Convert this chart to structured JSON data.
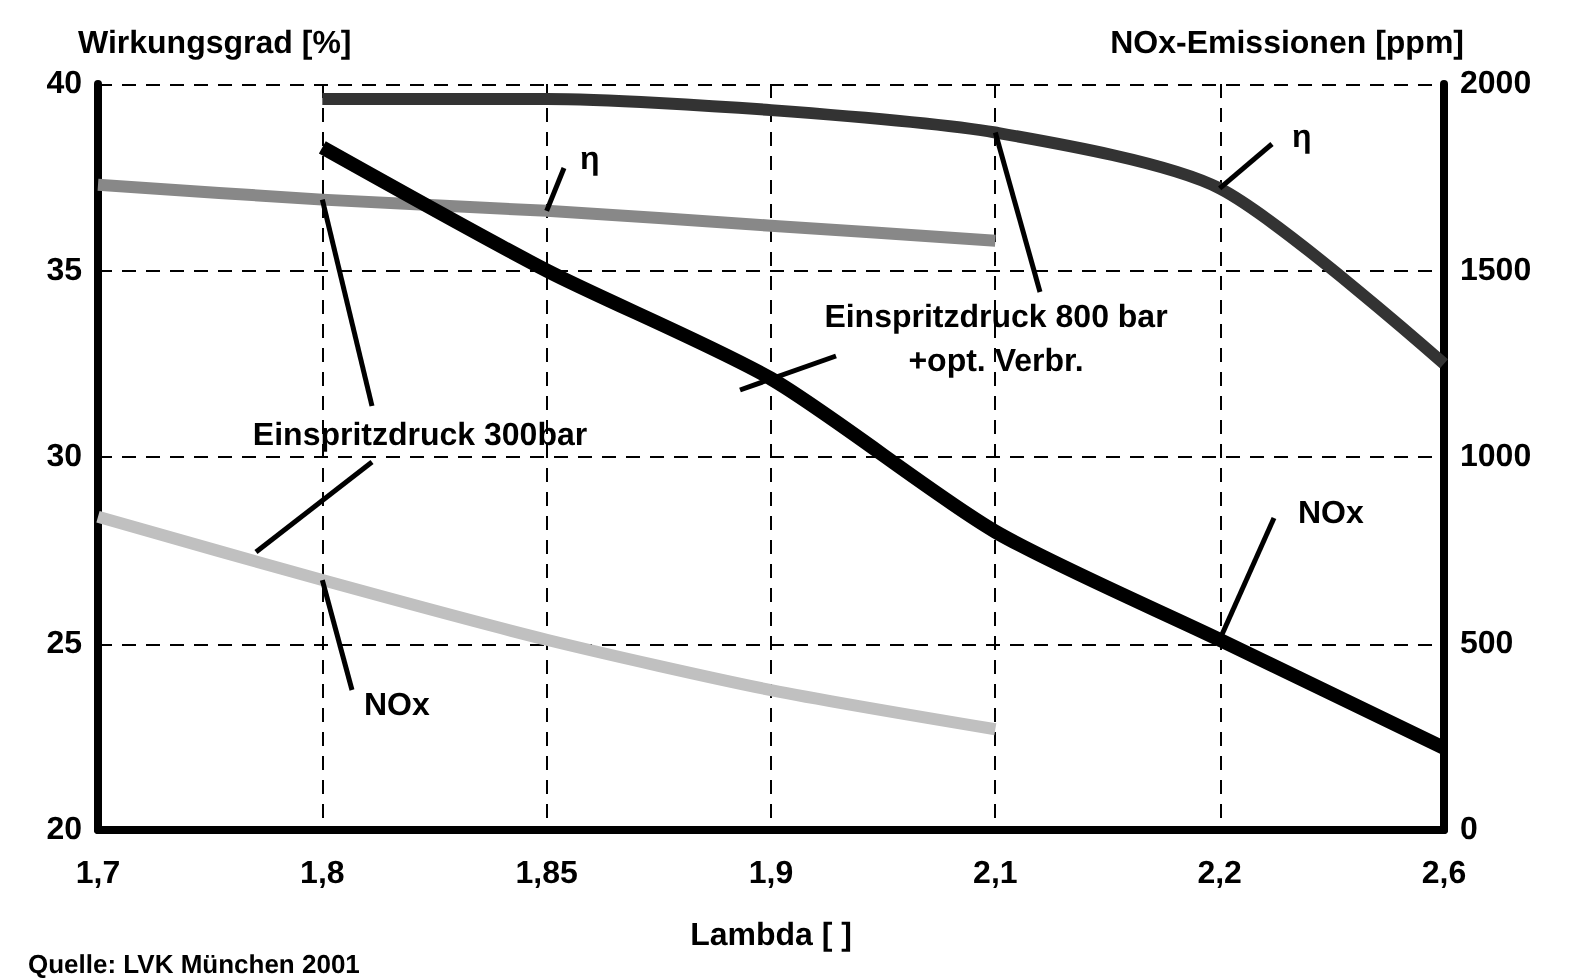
{
  "chart_data": {
    "type": "line",
    "xlabel": "Lambda [ ]",
    "ylabel": "Wirkungsgrad [%]",
    "y2label": "NOx-Emissionen [ppm]",
    "categories": [
      "1,7",
      "1,8",
      "1,85",
      "1,9",
      "2,1",
      "2,2",
      "2,6"
    ],
    "series": [
      {
        "color": "#888888",
        "values": [
          37.3,
          36.9,
          36.6,
          36.2,
          35.8,
          null,
          null
        ]
      },
      {
        "color": "#c0c0c0",
        "axis": "y2",
        "values": [
          840,
          670,
          510,
          375,
          270,
          null,
          null
        ]
      },
      {
        "color": "#333333",
        "values": [
          null,
          39.6,
          39.6,
          39.3,
          38.7,
          37.2,
          32.5
        ]
      },
      {
        "color": "#000000",
        "axis": "y2",
        "values": [
          null,
          1830,
          1500,
          1210,
          800,
          510,
          220
        ]
      }
    ],
    "ylim": [
      20,
      40
    ],
    "yticks": [
      20,
      25,
      30,
      35,
      40
    ],
    "y2lim": [
      0,
      2000
    ],
    "y2ticks": [
      0,
      500,
      1000,
      1500,
      2000
    ],
    "grid": true,
    "marker": "none",
    "line_style": "solid",
    "annotations": [
      {
        "text": "η",
        "x": "1,85",
        "y": 36.6
      },
      {
        "text": "Einspritzdruck 300bar",
        "x": "1,8",
        "y": 36.9
      },
      {
        "text": "NOx",
        "x": "1,8",
        "y": 26.7
      },
      {
        "text": "Einspritzdruck 800 bar\n+opt. Verbr.",
        "x": "2,1",
        "y": 38.7
      },
      {
        "text": "η",
        "x": "2,2",
        "y": 37.2
      },
      {
        "text": "NOx",
        "x": "2,2",
        "y": 25.1
      },
      "Quelle: LVK München 2001"
    ]
  }
}
